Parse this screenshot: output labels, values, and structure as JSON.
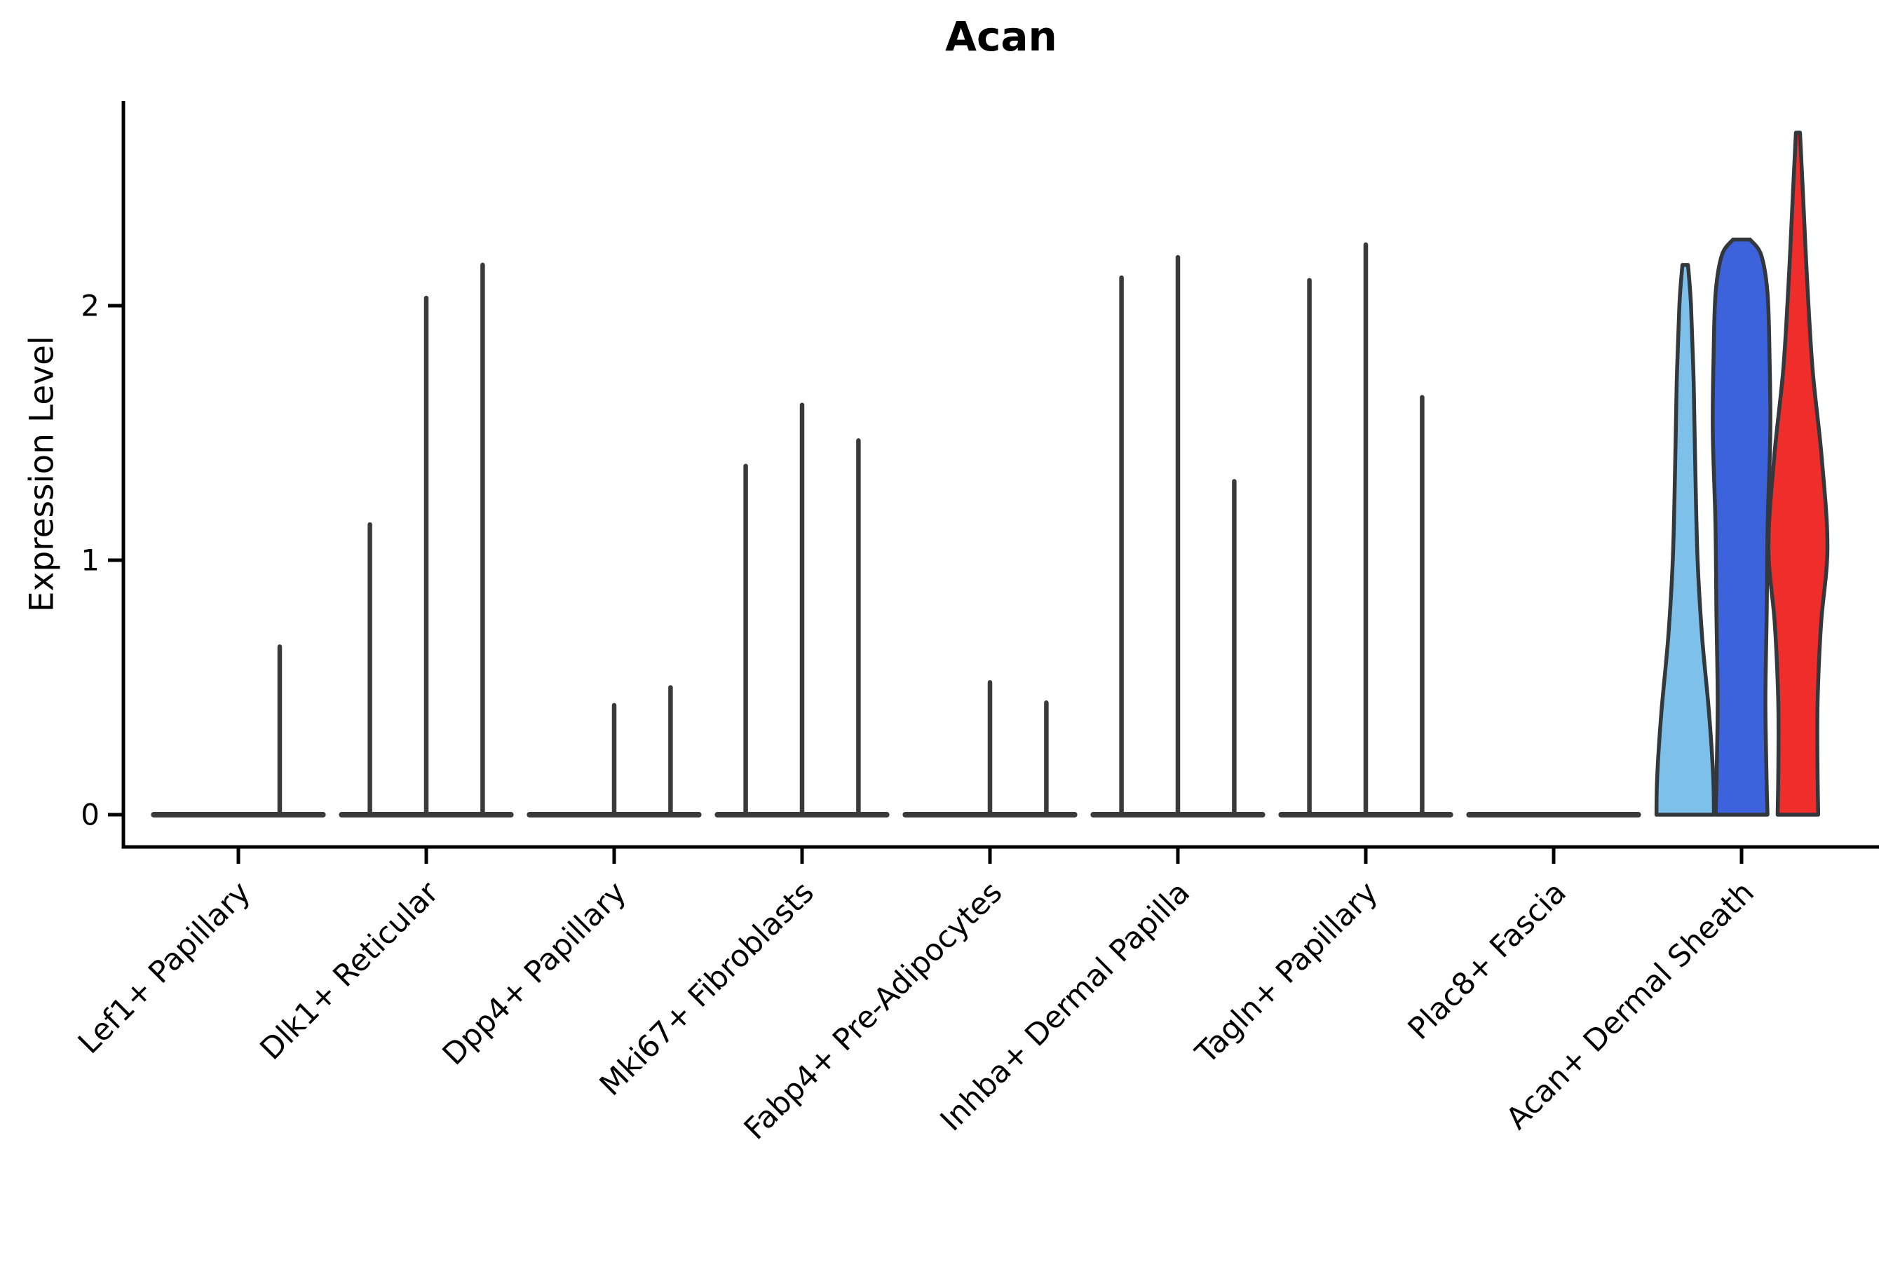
{
  "title": "Acan",
  "axes": {
    "ylabel": "Expression Level",
    "ytick_labels": [
      "0",
      "1",
      "2"
    ]
  },
  "colors": {
    "background": "#ffffff",
    "axis_ink": "#000000",
    "stick_ink": "#3a3a3a",
    "violin_outline": "#33383c",
    "violin_skyblue": "#7DC1EB",
    "violin_blue": "#3D63DC",
    "violin_red": "#EF2D2B"
  },
  "chart_data": {
    "type": "violin",
    "title": "Acan",
    "xlabel": "",
    "ylabel": "Expression Level",
    "yticks": [
      0,
      1,
      2
    ],
    "ylim": [
      -0.13,
      2.8
    ],
    "grid": false,
    "legend": "none",
    "categories": [
      "Lef1+ Papillary",
      "Dlk1+ Reticular",
      "Dpp4+ Papillary",
      "Mki67+ Fibroblasts",
      "Fabp4+ Pre-Adipocytes",
      "Inhba+ Dermal Papilla",
      "Tagln+ Papillary",
      "Plac8+ Fascia",
      "Acan+ Dermal Sheath"
    ],
    "note": "Flat dark baselines at 0 are violins of all-zero expression; thin vertical sticks mark the few expressing cells up to the max expression value. Offsets are fractions of one category slot (dodged sub-violins).",
    "violins": [
      {
        "category": "Lef1+ Papillary",
        "baseline": true,
        "spikes": [
          {
            "offset": 0.22,
            "max": 0.66
          }
        ],
        "shapes": []
      },
      {
        "category": "Dlk1+ Reticular",
        "baseline": true,
        "spikes": [
          {
            "offset": -0.3,
            "max": 1.14
          },
          {
            "offset": 0,
            "max": 2.03
          },
          {
            "offset": 0.3,
            "max": 2.16
          }
        ],
        "shapes": []
      },
      {
        "category": "Dpp4+ Papillary",
        "baseline": true,
        "spikes": [
          {
            "offset": 0,
            "max": 0.43
          },
          {
            "offset": 0.3,
            "max": 0.5
          }
        ],
        "shapes": []
      },
      {
        "category": "Mki67+ Fibroblasts",
        "baseline": true,
        "spikes": [
          {
            "offset": -0.3,
            "max": 1.37
          },
          {
            "offset": 0,
            "max": 1.61
          },
          {
            "offset": 0.3,
            "max": 1.47
          }
        ],
        "shapes": []
      },
      {
        "category": "Fabp4+ Pre-Adipocytes",
        "baseline": true,
        "spikes": [
          {
            "offset": 0,
            "max": 0.52
          },
          {
            "offset": 0.3,
            "max": 0.44
          }
        ],
        "shapes": []
      },
      {
        "category": "Inhba+ Dermal Papilla",
        "baseline": true,
        "spikes": [
          {
            "offset": -0.3,
            "max": 2.11
          },
          {
            "offset": 0,
            "max": 2.19
          },
          {
            "offset": 0.3,
            "max": 1.31
          }
        ],
        "shapes": []
      },
      {
        "category": "Tagln+ Papillary",
        "baseline": true,
        "spikes": [
          {
            "offset": -0.3,
            "max": 2.1
          },
          {
            "offset": 0,
            "max": 2.24
          },
          {
            "offset": 0.3,
            "max": 1.64
          }
        ],
        "shapes": []
      },
      {
        "category": "Plac8+ Fascia",
        "baseline": true,
        "spikes": [],
        "shapes": []
      },
      {
        "category": "Acan+ Dermal Sheath",
        "baseline": false,
        "spikes": [],
        "shapes": [
          {
            "name": "dermal-sheath-violin-left",
            "offset": -0.3,
            "fill_key": "violin_skyblue",
            "max": 2.16,
            "profile": [
              [
                2.16,
                0.015
              ],
              [
                2.0,
                0.031
              ],
              [
                1.7,
                0.045
              ],
              [
                1.35,
                0.054
              ],
              [
                1.0,
                0.066
              ],
              [
                0.7,
                0.09
              ],
              [
                0.4,
                0.127
              ],
              [
                0.15,
                0.149
              ],
              [
                0,
                0.153
              ]
            ]
          },
          {
            "name": "dermal-sheath-violin-mid",
            "offset": 0,
            "fill_key": "violin_blue",
            "max": 2.26,
            "profile": [
              [
                2.26,
                0.045
              ],
              [
                2.2,
                0.104
              ],
              [
                2.05,
                0.138
              ],
              [
                1.8,
                0.149
              ],
              [
                1.5,
                0.153
              ],
              [
                1.15,
                0.139
              ],
              [
                0.8,
                0.134
              ],
              [
                0.45,
                0.127
              ],
              [
                0.15,
                0.133
              ],
              [
                0,
                0.138
              ]
            ]
          },
          {
            "name": "dermal-sheath-violin-right",
            "offset": 0.3,
            "fill_key": "violin_red",
            "max": 2.68,
            "profile": [
              [
                2.68,
                0.011
              ],
              [
                2.45,
                0.026
              ],
              [
                2.1,
                0.049
              ],
              [
                1.75,
                0.078
              ],
              [
                1.4,
                0.127
              ],
              [
                1.05,
                0.157
              ],
              [
                0.75,
                0.123
              ],
              [
                0.45,
                0.105
              ],
              [
                0.2,
                0.104
              ],
              [
                0,
                0.108
              ]
            ]
          }
        ]
      }
    ]
  }
}
